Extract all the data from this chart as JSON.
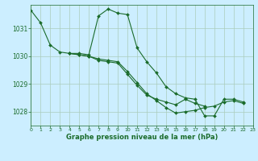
{
  "title": "Graphe pression niveau de la mer (hPa)",
  "background_color": "#cceeff",
  "grid_color": "#aaccbb",
  "line_color": "#1a6b2a",
  "xlim": [
    0,
    23
  ],
  "ylim": [
    1027.5,
    1031.85
  ],
  "yticks": [
    1028,
    1029,
    1030,
    1031
  ],
  "xticks": [
    0,
    1,
    2,
    3,
    4,
    5,
    6,
    7,
    8,
    9,
    10,
    11,
    12,
    13,
    14,
    15,
    16,
    17,
    18,
    19,
    20,
    21,
    22,
    23
  ],
  "series": [
    {
      "x": [
        0,
        1,
        2,
        3,
        4,
        5,
        6,
        7,
        8,
        9,
        10,
        11,
        12,
        13,
        14,
        15,
        16,
        17,
        18,
        19,
        20,
        21,
        22
      ],
      "y": [
        1031.65,
        1031.2,
        1030.4,
        1030.15,
        1030.1,
        1030.1,
        1030.05,
        1031.45,
        1031.7,
        1031.55,
        1031.5,
        1030.3,
        1029.8,
        1029.4,
        1028.9,
        1028.65,
        1028.5,
        1028.45,
        1027.85,
        1027.85,
        1028.45,
        1028.45,
        1028.35
      ]
    },
    {
      "x": [
        4,
        5,
        6,
        7,
        8,
        9,
        10,
        11,
        12,
        13,
        14,
        15,
        16,
        17,
        18,
        19,
        20,
        21,
        22
      ],
      "y": [
        1030.1,
        1030.05,
        1030.0,
        1029.9,
        1029.85,
        1029.8,
        1029.45,
        1029.05,
        1028.65,
        1028.4,
        1028.15,
        1027.95,
        1028.0,
        1028.05,
        1028.15,
        1028.2,
        1028.35,
        1028.4,
        1028.3
      ]
    },
    {
      "x": [
        4,
        5,
        6,
        7,
        8,
        9,
        10,
        11,
        12,
        13,
        14,
        15,
        16,
        17,
        18
      ],
      "y": [
        1030.1,
        1030.05,
        1030.0,
        1029.85,
        1029.8,
        1029.75,
        1029.35,
        1028.95,
        1028.6,
        1028.45,
        1028.35,
        1028.25,
        1028.45,
        1028.3,
        1028.2
      ]
    }
  ]
}
